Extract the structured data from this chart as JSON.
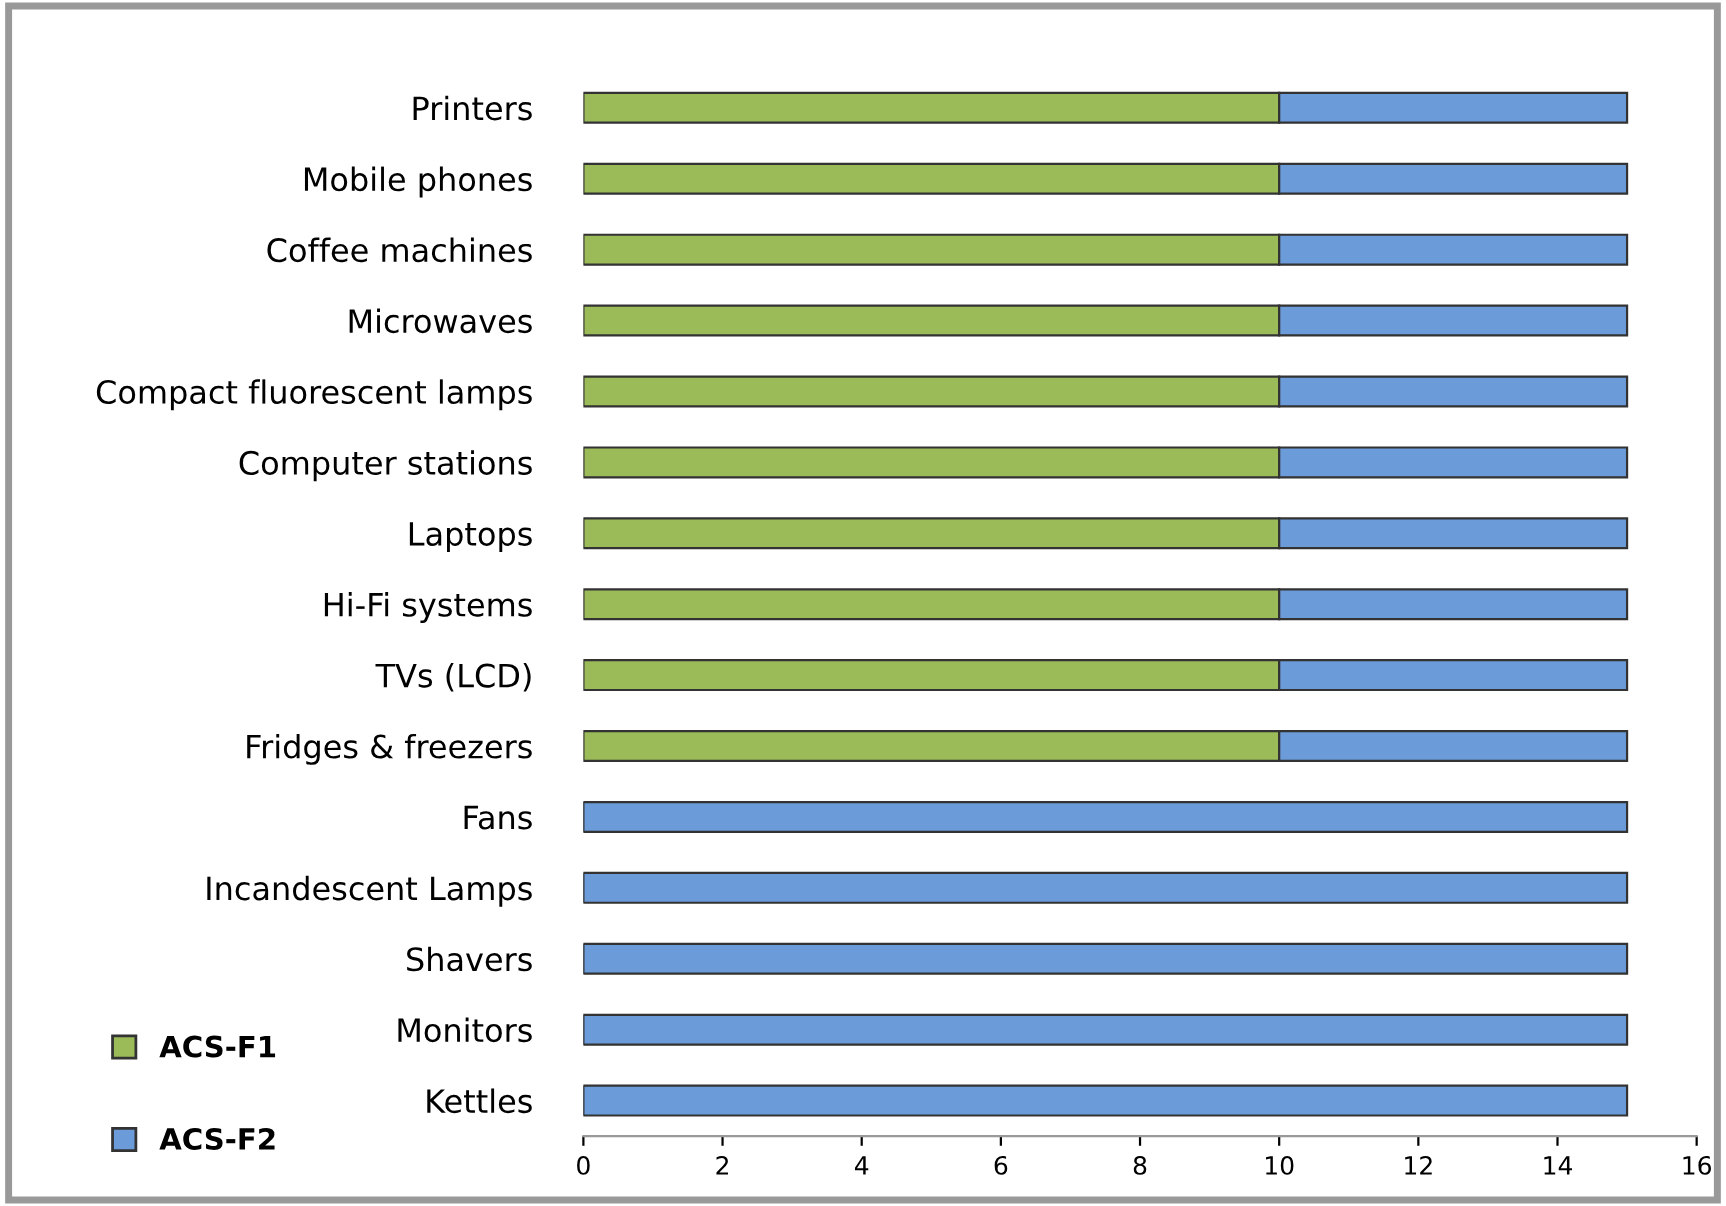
{
  "chart_data": {
    "type": "bar",
    "orientation": "horizontal",
    "stacked": true,
    "categories": [
      "Printers",
      "Mobile phones",
      "Coffee machines",
      "Microwaves",
      "Compact fluorescent lamps",
      "Computer stations",
      "Laptops",
      "Hi-Fi systems",
      "TVs (LCD)",
      "Fridges & freezers",
      "Fans",
      "Incandescent Lamps",
      "Shavers",
      "Monitors",
      "Kettles"
    ],
    "series": [
      {
        "name": "ACS-F1",
        "color": "#9bbb59",
        "values": [
          10,
          10,
          10,
          10,
          10,
          10,
          10,
          10,
          10,
          10,
          0,
          0,
          0,
          0,
          0
        ]
      },
      {
        "name": "ACS-F2",
        "color": "#6b9bd8",
        "values": [
          5,
          5,
          5,
          5,
          5,
          5,
          5,
          5,
          5,
          5,
          15,
          15,
          15,
          15,
          15
        ]
      }
    ],
    "xlim": [
      0,
      16
    ],
    "xticks": [
      0,
      2,
      4,
      6,
      8,
      10,
      12,
      14,
      16
    ],
    "grid": false,
    "legend": "bottom left"
  }
}
